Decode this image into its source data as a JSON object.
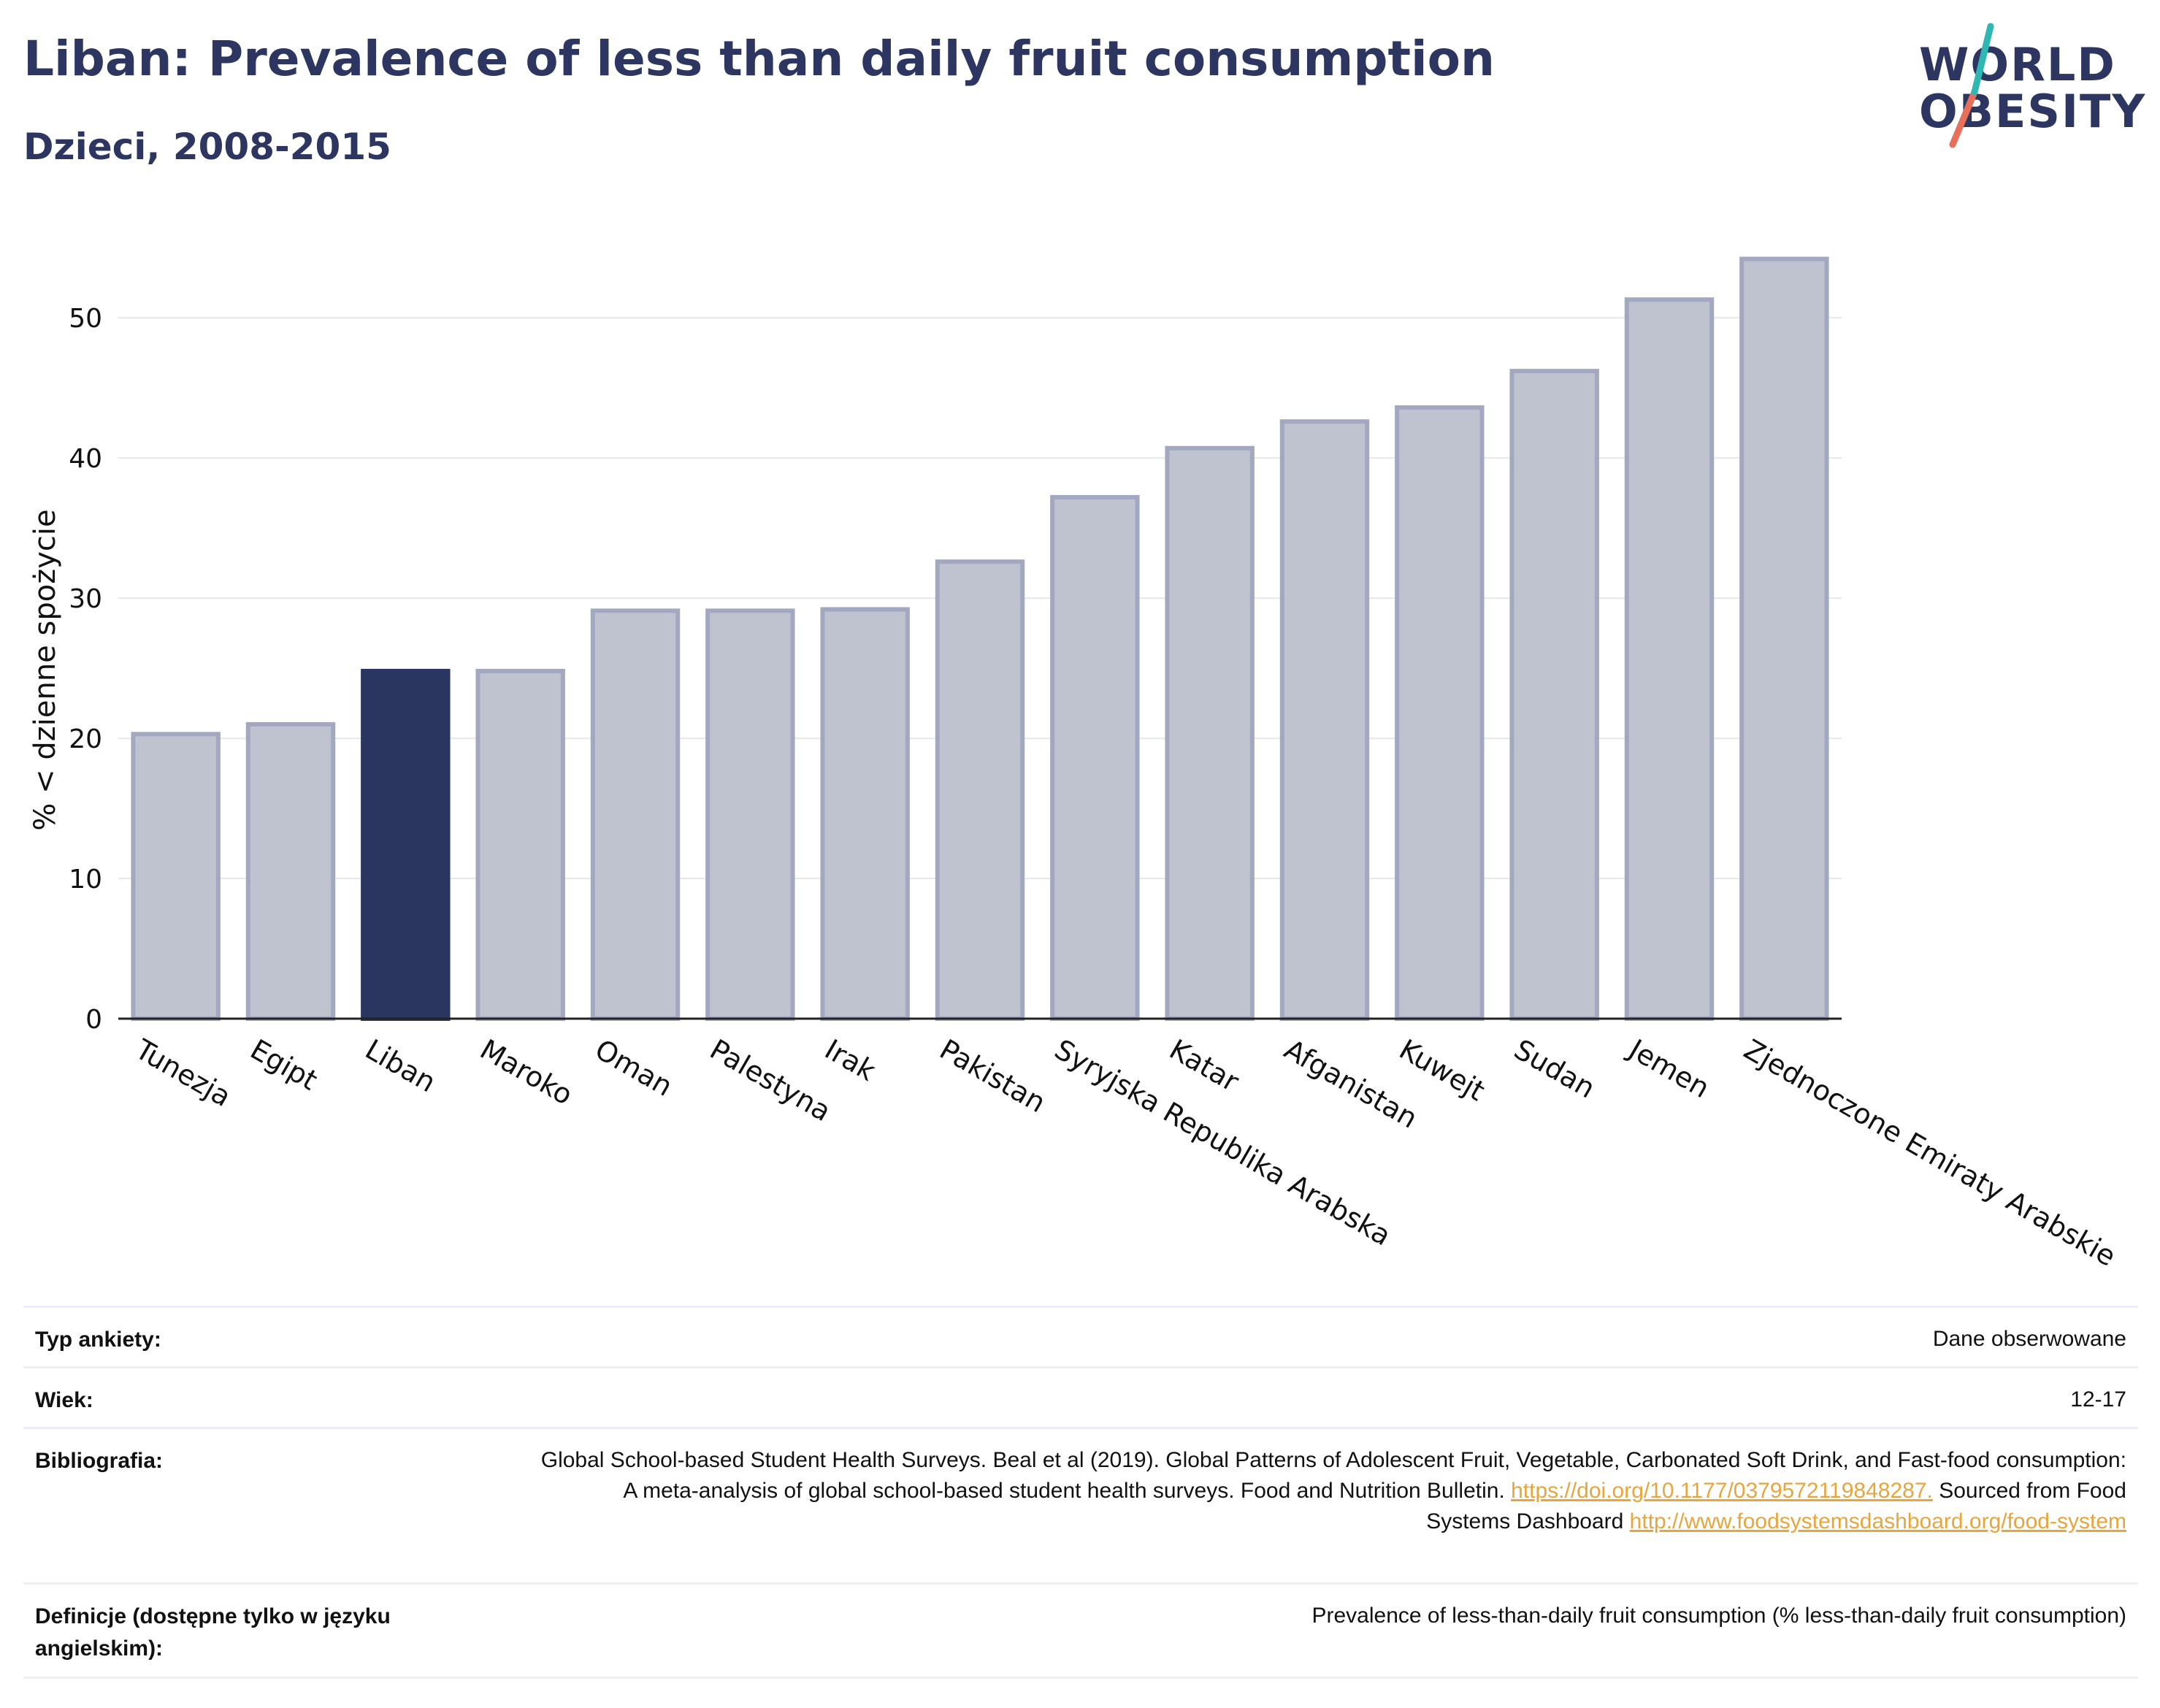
{
  "header": {
    "title": "Liban: Prevalence of less than daily fruit consumption",
    "subtitle": "Dzieci, 2008-2015"
  },
  "logo": {
    "line1": "WORLD",
    "line2": "OBESITY"
  },
  "chart_data": {
    "type": "bar",
    "ylabel": "% < dzienne spożycie",
    "ylim": [
      0,
      56
    ],
    "yticks": [
      0,
      10,
      20,
      30,
      40,
      50
    ],
    "grid": true,
    "categories": [
      "Tunezja",
      "Egipt",
      "Liban",
      "Maroko",
      "Oman",
      "Palestyna",
      "Irak",
      "Pakistan",
      "Syryjska Republika Arabska",
      "Katar",
      "Afganistan",
      "Kuwejt",
      "Sudan",
      "Jemen",
      "Zjednoczone Emiraty Arabskie"
    ],
    "values": [
      20.3,
      21.0,
      24.8,
      24.8,
      29.1,
      29.1,
      29.2,
      32.6,
      37.2,
      40.7,
      42.6,
      43.6,
      46.2,
      51.3,
      54.2
    ],
    "highlight": "Liban",
    "colors": {
      "highlight": "#2b3660",
      "default": "#bfc3d0",
      "default_border": "#a2a8bf"
    }
  },
  "meta": {
    "survey_type": {
      "label": "Typ ankiety:",
      "value": "Dane obserwowane"
    },
    "age": {
      "label": "Wiek:",
      "value": "12-17"
    },
    "bibliography": {
      "label": "Bibliografia:",
      "text1": "Global School-based Student Health Surveys. Beal et al (2019). Global Patterns of Adolescent Fruit, Vegetable, Carbonated Soft Drink, and Fast-food consumption: A meta-analysis of global school-based student health surveys. Food and Nutrition Bulletin.",
      "link1": "https://doi.org/10.1177/0379572119848287.",
      "text2": "Sourced from Food Systems Dashboard",
      "link2": "http://www.foodsystemsdashboard.org/food-system"
    },
    "definitions": {
      "label": "Definicje (dostępne tylko w języku angielskim):",
      "value": "Prevalence of less-than-daily fruit consumption (% less-than-daily fruit consumption)"
    }
  }
}
